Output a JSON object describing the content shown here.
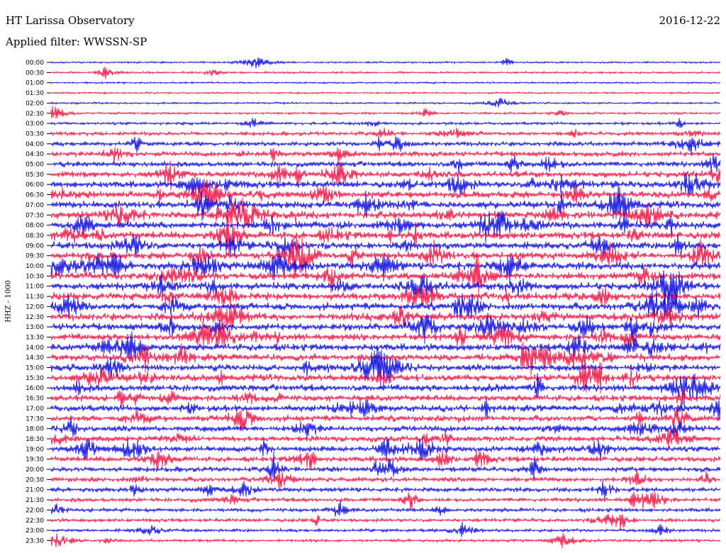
{
  "header": {
    "station": "HT Larissa Observatory",
    "date": "2016-12-22",
    "filter": "Applied filter: WWSSN-SP",
    "channel": "HHZ - 1000"
  },
  "colors": {
    "even_trace": "#1010e0",
    "odd_trace": "#f01848",
    "background": "#ffffff"
  },
  "chart_data": {
    "type": "line",
    "title": "HT Larissa Observatory",
    "ylabel": "HHZ - 1000",
    "grid": false,
    "row_labels": [
      "00:00",
      "00:30",
      "01:00",
      "01:30",
      "02:00",
      "02:30",
      "03:00",
      "03:30",
      "04:00",
      "04:30",
      "05:00",
      "05:30",
      "06:00",
      "06:30",
      "07:00",
      "07:30",
      "08:00",
      "08:30",
      "09:00",
      "09:30",
      "10:00",
      "10:30",
      "11:00",
      "11:30",
      "12:00",
      "12:30",
      "13:00",
      "13:30",
      "14:00",
      "14:30",
      "15:00",
      "15:30",
      "16:00",
      "16:30",
      "17:00",
      "17:30",
      "18:00",
      "18:30",
      "19:00",
      "19:30",
      "20:00",
      "20:30",
      "21:00",
      "21:30",
      "22:00",
      "22:30",
      "23:00",
      "23:30"
    ],
    "noise_level": [
      0.05,
      0.08,
      0.04,
      0.05,
      0.06,
      0.12,
      0.2,
      0.35,
      0.45,
      0.55,
      0.6,
      0.7,
      0.8,
      0.85,
      0.85,
      0.9,
      0.9,
      0.9,
      0.9,
      0.9,
      0.9,
      0.9,
      0.9,
      0.9,
      0.9,
      0.9,
      0.85,
      0.85,
      0.85,
      0.85,
      0.8,
      0.8,
      0.8,
      0.75,
      0.75,
      0.7,
      0.7,
      0.65,
      0.65,
      0.6,
      0.55,
      0.5,
      0.45,
      0.4,
      0.35,
      0.3,
      0.25,
      0.2
    ]
  }
}
